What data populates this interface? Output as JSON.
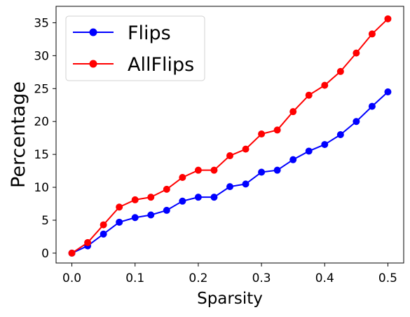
{
  "chart_data": {
    "type": "line",
    "xlabel": "Sparsity",
    "ylabel": "Percentage",
    "xlim": [
      -0.025,
      0.525
    ],
    "ylim": [
      -1.5,
      37.5
    ],
    "x_ticks": [
      0.0,
      0.1,
      0.2,
      0.3,
      0.4,
      0.5
    ],
    "x_tick_labels": [
      "0.0",
      "0.1",
      "0.2",
      "0.3",
      "0.4",
      "0.5"
    ],
    "y_ticks": [
      0,
      5,
      10,
      15,
      20,
      25,
      30,
      35
    ],
    "y_tick_labels": [
      "0",
      "5",
      "10",
      "15",
      "20",
      "25",
      "30",
      "35"
    ],
    "grid": false,
    "legend_position": "top-left",
    "x": [
      0.0,
      0.025,
      0.05,
      0.075,
      0.1,
      0.125,
      0.15,
      0.175,
      0.2,
      0.225,
      0.25,
      0.275,
      0.3,
      0.325,
      0.35,
      0.375,
      0.4,
      0.425,
      0.45,
      0.475,
      0.5
    ],
    "series": [
      {
        "name": "Flips",
        "color": "#0000ff",
        "values": [
          0.0,
          1.1,
          2.9,
          4.7,
          5.4,
          5.8,
          6.5,
          7.9,
          8.5,
          8.5,
          10.1,
          10.5,
          12.3,
          12.6,
          14.2,
          15.5,
          16.5,
          18.0,
          20.0,
          22.3,
          24.5
        ]
      },
      {
        "name": "AllFlips",
        "color": "#ff0000",
        "values": [
          0.0,
          1.6,
          4.3,
          7.0,
          8.1,
          8.5,
          9.7,
          11.5,
          12.6,
          12.6,
          14.8,
          15.8,
          18.1,
          18.7,
          21.5,
          24.0,
          25.5,
          27.6,
          30.4,
          33.3,
          35.6
        ]
      }
    ]
  }
}
